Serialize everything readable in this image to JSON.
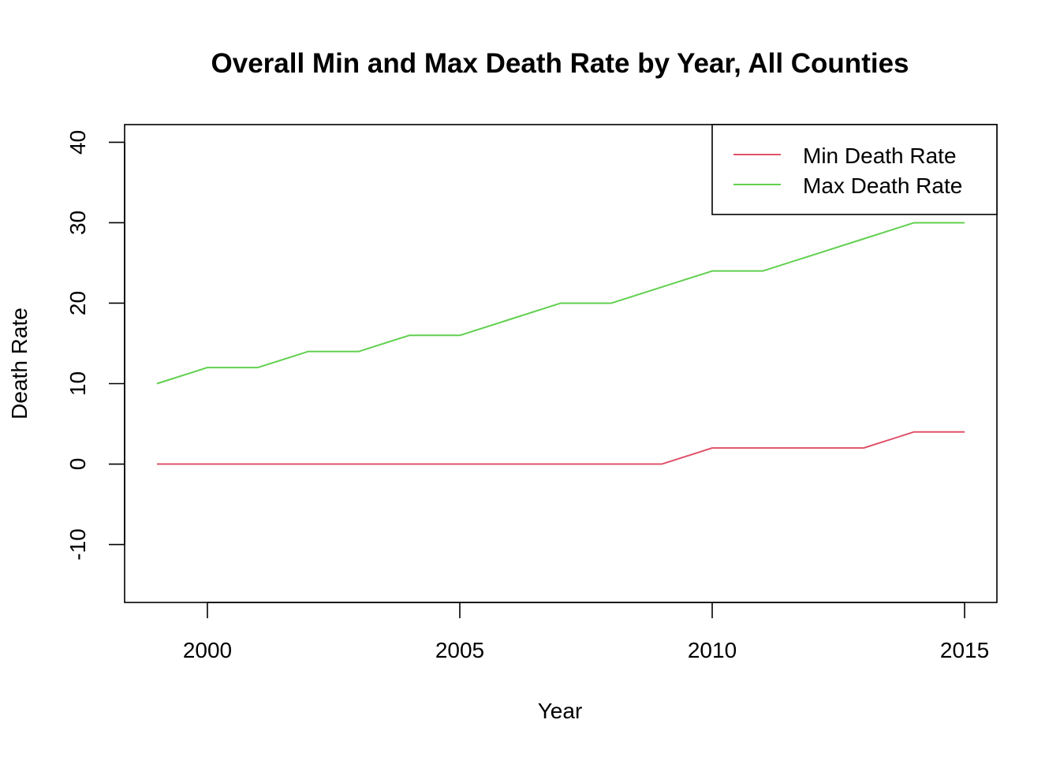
{
  "chart_data": {
    "type": "line",
    "title": "Overall Min and Max Death Rate by Year, All Counties",
    "xlabel": "Year",
    "ylabel": "Death Rate",
    "x": [
      1999,
      2000,
      2001,
      2002,
      2003,
      2004,
      2005,
      2006,
      2007,
      2008,
      2009,
      2010,
      2011,
      2012,
      2013,
      2014,
      2015
    ],
    "series": [
      {
        "name": "Min Death Rate",
        "color": "#DF536B",
        "values": [
          0,
          0,
          0,
          0,
          0,
          0,
          0,
          0,
          0,
          0,
          0,
          2,
          2,
          2,
          2,
          4,
          4
        ]
      },
      {
        "name": "Max Death Rate",
        "color": "#61D04F",
        "values": [
          10,
          12,
          12,
          14,
          14,
          16,
          16,
          18,
          20,
          20,
          22,
          24,
          24,
          26,
          28,
          30,
          30
        ]
      }
    ],
    "xlim": [
      1998.36,
      2015.64
    ],
    "ylim": [
      -17.2,
      42.2
    ],
    "xticks": [
      2000,
      2005,
      2010,
      2015
    ],
    "yticks": [
      -10,
      0,
      10,
      20,
      30,
      40
    ],
    "xtick_labels": [
      "2000",
      "2005",
      "2010",
      "2015"
    ],
    "ytick_labels": [
      "-10",
      "0",
      "10",
      "20",
      "30",
      "40"
    ],
    "legend_position": "top-right",
    "grid": false
  }
}
